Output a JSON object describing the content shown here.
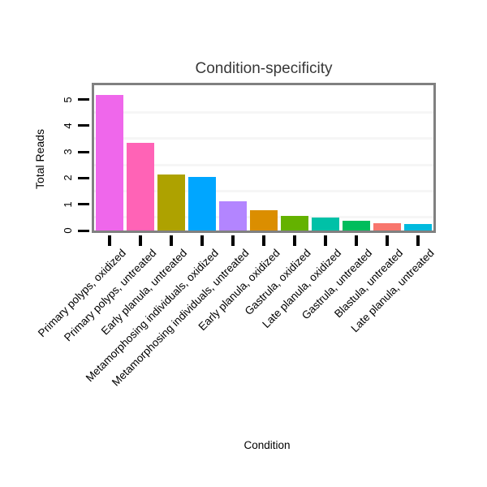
{
  "chart_data": {
    "type": "bar",
    "title": "Condition-specificity",
    "xlabel": "Condition",
    "ylabel": "Total Reads",
    "categories": [
      "Primary polyps, oxidized",
      "Primary polyps, untreated",
      "Early planula, untreated",
      "Metamorphosing individuals, oxidized",
      "Metamorphosing individuals, untreated",
      "Early planula, oxidized",
      "Gastrula, oxidized",
      "Late planula, oxidized",
      "Gastrula, untreated",
      "Blastula, untreated",
      "Late planula, untreated"
    ],
    "values": [
      5.17,
      3.34,
      2.14,
      2.05,
      1.1,
      0.76,
      0.57,
      0.5,
      0.36,
      0.27,
      0.25
    ],
    "bar_colors": [
      "#EF67EB",
      "#FF63B6",
      "#AEA200",
      "#00A6FF",
      "#B385FF",
      "#DB8E00",
      "#64B200",
      "#00C1A7",
      "#00BD5C",
      "#F8766D",
      "#00BADE"
    ],
    "yticks": [
      "0",
      "1",
      "2",
      "3",
      "4",
      "5"
    ],
    "ylim": [
      0,
      5.54
    ],
    "minor_gridlines": [
      0.5,
      1.5,
      2.5,
      3.5,
      4.5
    ],
    "grid": "minor-only",
    "legend": "none",
    "x_tick_label_rotation_deg": 45,
    "y_tick_label_rotation_deg": 90
  },
  "colors": {
    "background": "#ffffff",
    "panel_border": "#808080",
    "minor_grid": "#f6f6f6",
    "axis_tick": "#000000",
    "axis_text": "#000000",
    "title_text": "#383838"
  }
}
